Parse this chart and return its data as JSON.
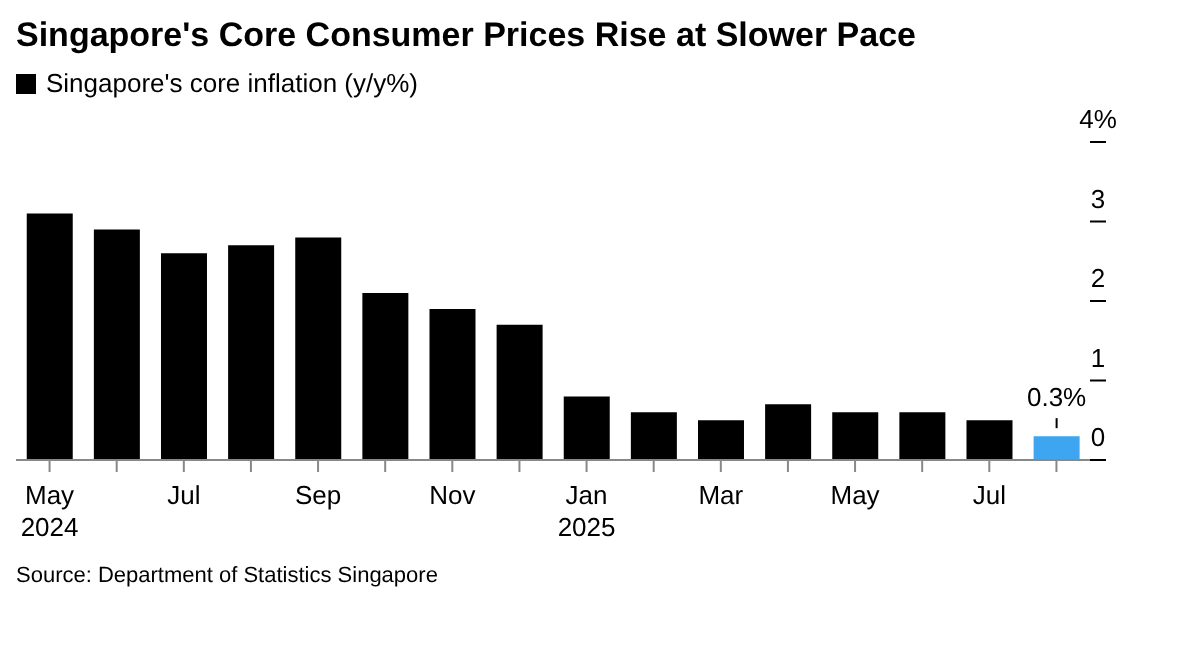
{
  "chart_data": {
    "type": "bar",
    "title": "Singapore's Core Consumer Prices Rise at Slower Pace",
    "categories": [
      "May\n2024",
      null,
      "Jul",
      null,
      "Sep",
      null,
      "Nov",
      null,
      "Jan\n2025",
      null,
      "Mar",
      null,
      "May",
      null,
      "Jul",
      null
    ],
    "series": [
      {
        "name": "Singapore's core inflation (y/y%)",
        "color": "#000000",
        "colors": [
          "#000000",
          "#000000",
          "#000000",
          "#000000",
          "#000000",
          "#000000",
          "#000000",
          "#000000",
          "#000000",
          "#000000",
          "#000000",
          "#000000",
          "#000000",
          "#000000",
          "#000000",
          "#3ea6f0"
        ],
        "values": [
          3.1,
          2.9,
          2.6,
          2.7,
          2.8,
          2.1,
          1.9,
          1.7,
          0.8,
          0.6,
          0.5,
          0.7,
          0.6,
          0.6,
          0.5,
          0.3
        ],
        "value_labels": [
          null,
          null,
          null,
          null,
          null,
          null,
          null,
          null,
          null,
          null,
          null,
          null,
          null,
          null,
          null,
          "0.3%"
        ]
      }
    ],
    "ylim": [
      0,
      4
    ],
    "yticks": [
      0,
      1,
      2,
      3,
      {
        "value": 4,
        "label": "4%"
      }
    ],
    "legend": "top left",
    "annotations": [
      "Source: Department of Statistics Singapore"
    ]
  }
}
